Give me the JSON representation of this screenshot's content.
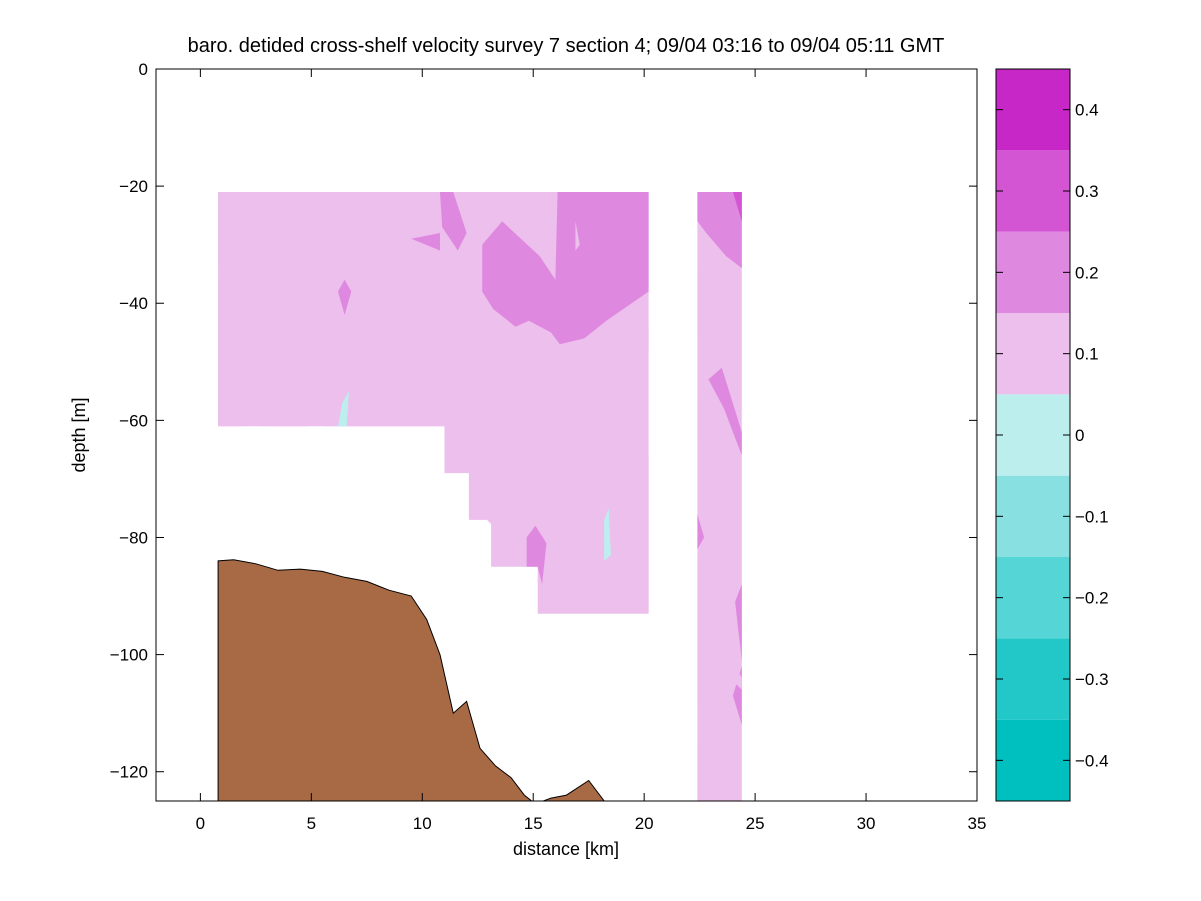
{
  "chart_data": {
    "type": "heatmap",
    "title": "baro. detided cross-shelf velocity survey 7 section 4; 09/04 03:16 to 09/04 05:11 GMT",
    "xlabel": "distance [km]",
    "ylabel": "depth [m]",
    "xlim": [
      -2,
      35
    ],
    "ylim": [
      -125,
      0
    ],
    "xticks": [
      0,
      5,
      10,
      15,
      20,
      25,
      30,
      35
    ],
    "yticks": [
      0,
      -20,
      -40,
      -60,
      -80,
      -100,
      -120
    ],
    "colorbar": {
      "levels": [
        -0.45,
        -0.35,
        -0.25,
        -0.15,
        -0.05,
        0.05,
        0.15,
        0.25,
        0.35,
        0.45
      ],
      "colors": [
        "#00bfbf",
        "#22c8c8",
        "#55d5d5",
        "#88e0e0",
        "#bdeeee",
        "#ecbfec",
        "#df88df",
        "#d455d4",
        "#c827c8",
        "#bf00bf"
      ],
      "ticks": [
        0.4,
        0.3,
        0.2,
        0.1,
        0,
        -0.1,
        -0.2,
        -0.3,
        -0.4
      ],
      "tick_labels": [
        "0.4",
        "0.3",
        "0.2",
        "0.1",
        "0",
        "−0.1",
        "−0.2",
        "−0.3",
        "−0.4"
      ]
    },
    "bathymetry": {
      "color": "#a86a45",
      "points": [
        [
          0.8,
          -84
        ],
        [
          1.5,
          -83.8
        ],
        [
          2.5,
          -84.5
        ],
        [
          3.5,
          -85.6
        ],
        [
          4.5,
          -85.4
        ],
        [
          5.5,
          -85.8
        ],
        [
          6.5,
          -86.8
        ],
        [
          7.5,
          -87.5
        ],
        [
          8.5,
          -89
        ],
        [
          9.5,
          -90
        ],
        [
          10.2,
          -94
        ],
        [
          10.8,
          -100
        ],
        [
          11.4,
          -110
        ],
        [
          12,
          -108
        ],
        [
          12.6,
          -116
        ],
        [
          13.3,
          -119
        ],
        [
          14,
          -121
        ],
        [
          14.6,
          -124
        ],
        [
          15.1,
          -125.5
        ],
        [
          15.8,
          -124.5
        ],
        [
          16.5,
          -124
        ],
        [
          17.5,
          -121.5
        ],
        [
          18.2,
          -125
        ]
      ]
    },
    "sections": [
      {
        "name": "section-west",
        "background_level": 0.1,
        "outline": [
          [
            0.8,
            -21
          ],
          [
            20.2,
            -21
          ],
          [
            20.2,
            -93
          ],
          [
            15.2,
            -93
          ],
          [
            15.2,
            -85
          ],
          [
            13.1,
            -85
          ],
          [
            13.1,
            -77
          ],
          [
            12.1,
            -77
          ],
          [
            12.1,
            -69
          ],
          [
            11,
            -69
          ],
          [
            11,
            -61
          ],
          [
            0.8,
            -61
          ]
        ],
        "patches": [
          {
            "level": 0.05,
            "points": [
              [
                0.8,
                -21
              ],
              [
                1.6,
                -21
              ],
              [
                1.8,
                -26
              ],
              [
                1.5,
                -32
              ],
              [
                0.8,
                -34
              ]
            ]
          },
          {
            "level": 0.05,
            "points": [
              [
                0.8,
                -36
              ],
              [
                1.5,
                -38
              ],
              [
                2.2,
                -46
              ],
              [
                2.4,
                -53
              ],
              [
                2.1,
                -61
              ],
              [
                0.8,
                -61
              ]
            ]
          },
          {
            "level": 0.05,
            "points": [
              [
                2.6,
                -61
              ],
              [
                3.3,
                -56
              ],
              [
                4.6,
                -60
              ],
              [
                4.8,
                -61
              ]
            ]
          },
          {
            "level": 0.05,
            "points": [
              [
                3.9,
                -21
              ],
              [
                4.2,
                -21
              ],
              [
                4.2,
                -28
              ],
              [
                3.9,
                -29
              ]
            ]
          },
          {
            "level": 0.05,
            "points": [
              [
                4.3,
                -40
              ],
              [
                5.6,
                -44
              ],
              [
                7,
                -52
              ],
              [
                8,
                -50
              ],
              [
                9.5,
                -54
              ],
              [
                10.8,
                -55
              ],
              [
                11,
                -61
              ],
              [
                5.6,
                -61
              ],
              [
                5,
                -52
              ],
              [
                4.4,
                -45
              ]
            ]
          },
          {
            "level": 0.05,
            "points": [
              [
                6.7,
                -28
              ],
              [
                7.7,
                -25
              ],
              [
                8.3,
                -34
              ],
              [
                8,
                -39
              ],
              [
                6.8,
                -32
              ]
            ]
          },
          {
            "level": 0.05,
            "points": [
              [
                8,
                -36
              ],
              [
                9.5,
                -34
              ],
              [
                10.8,
                -38
              ],
              [
                10,
                -42
              ],
              [
                9,
                -39
              ]
            ]
          },
          {
            "level": 0.05,
            "points": [
              [
                10.8,
                -38
              ],
              [
                11.2,
                -46
              ],
              [
                10.8,
                -55
              ],
              [
                10.2,
                -49
              ]
            ]
          },
          {
            "level": 0.05,
            "points": [
              [
                12.5,
                -56
              ],
              [
                14,
                -54
              ],
              [
                14.8,
                -55
              ],
              [
                14.4,
                -64
              ],
              [
                13.7,
                -70
              ],
              [
                13.7,
                -80
              ],
              [
                12.4,
                -75
              ],
              [
                12.1,
                -66
              ]
            ]
          },
          {
            "level": 0.05,
            "points": [
              [
                15.2,
                -93
              ],
              [
                17.2,
                -84
              ],
              [
                18.5,
                -78
              ],
              [
                19.2,
                -75
              ],
              [
                19.4,
                -67
              ],
              [
                20.2,
                -66
              ],
              [
                20.2,
                -93
              ]
            ]
          },
          {
            "level": 0.05,
            "points": [
              [
                19.6,
                -48
              ],
              [
                20.2,
                -44
              ],
              [
                20.2,
                -48
              ]
            ]
          },
          {
            "level": 0.15,
            "points": [
              [
                10.8,
                -21
              ],
              [
                11.4,
                -21
              ],
              [
                12,
                -28
              ],
              [
                11.6,
                -31
              ],
              [
                10.9,
                -27
              ]
            ]
          },
          {
            "level": 0.15,
            "points": [
              [
                9.5,
                -29
              ],
              [
                10.8,
                -28
              ],
              [
                10.8,
                -31
              ]
            ]
          },
          {
            "level": 0.15,
            "points": [
              [
                6.5,
                -36
              ],
              [
                6.8,
                -38
              ],
              [
                6.5,
                -42
              ],
              [
                6.2,
                -38
              ]
            ]
          },
          {
            "level": 0.15,
            "points": [
              [
                12.7,
                -30
              ],
              [
                13.6,
                -26
              ],
              [
                15.3,
                -32
              ],
              [
                16,
                -36
              ],
              [
                16.1,
                -21
              ],
              [
                20.2,
                -21
              ],
              [
                20.2,
                -38
              ],
              [
                18.3,
                -43
              ],
              [
                17.3,
                -46
              ],
              [
                16.2,
                -47
              ],
              [
                15.8,
                -45
              ],
              [
                14.8,
                -43
              ],
              [
                14.2,
                -44
              ],
              [
                13.2,
                -41
              ],
              [
                12.7,
                -38
              ]
            ]
          },
          {
            "level": 0.15,
            "points": [
              [
                14.7,
                -80
              ],
              [
                15.1,
                -78
              ],
              [
                15.6,
                -81
              ],
              [
                15.4,
                -88
              ],
              [
                15.2,
                -85
              ],
              [
                14.7,
                -85
              ]
            ]
          },
          {
            "level": 0.05,
            "points": [
              [
                16.9,
                -26
              ],
              [
                17.1,
                -30
              ],
              [
                16.9,
                -31
              ]
            ]
          },
          {
            "level": -0.05,
            "points": [
              [
                6.4,
                -57
              ],
              [
                6.7,
                -55
              ],
              [
                6.6,
                -61
              ],
              [
                6.2,
                -61
              ]
            ]
          },
          {
            "level": -0.05,
            "points": [
              [
                18.2,
                -77
              ],
              [
                18.4,
                -75
              ],
              [
                18.5,
                -83
              ],
              [
                18.2,
                -84
              ]
            ]
          }
        ]
      },
      {
        "name": "section-east",
        "background_level": 0.05,
        "outline": [
          [
            22.4,
            -21
          ],
          [
            24.4,
            -21
          ],
          [
            24.4,
            -125
          ],
          [
            22.4,
            -125
          ]
        ],
        "patches": [
          {
            "level": 0.15,
            "points": [
              [
                22.4,
                -21
              ],
              [
                24.4,
                -21
              ],
              [
                24.4,
                -34
              ],
              [
                23.7,
                -32
              ],
              [
                22.8,
                -28
              ],
              [
                22.4,
                -26
              ]
            ]
          },
          {
            "level": 0.25,
            "points": [
              [
                24,
                -21
              ],
              [
                24.4,
                -21
              ],
              [
                24.4,
                -26
              ]
            ]
          },
          {
            "level": 0.15,
            "points": [
              [
                22.9,
                -53
              ],
              [
                23.5,
                -51
              ],
              [
                24.4,
                -62
              ],
              [
                24.4,
                -66
              ],
              [
                23.6,
                -58
              ]
            ]
          },
          {
            "level": 0.15,
            "points": [
              [
                24.1,
                -91
              ],
              [
                24.4,
                -88
              ],
              [
                24.4,
                -101
              ]
            ]
          },
          {
            "level": 0.15,
            "points": [
              [
                24,
                -107
              ],
              [
                24.4,
                -102
              ],
              [
                24.4,
                -112
              ]
            ]
          },
          {
            "level": 0.15,
            "points": [
              [
                22.4,
                -76
              ],
              [
                22.7,
                -80
              ],
              [
                22.4,
                -82
              ]
            ]
          },
          {
            "level": 0.05,
            "points": [
              [
                22.4,
                -34
              ],
              [
                23.3,
                -38
              ],
              [
                23.3,
                -44
              ],
              [
                22.4,
                -46
              ]
            ]
          },
          {
            "level": 0.05,
            "points": [
              [
                22.4,
                -56
              ],
              [
                22.7,
                -60
              ],
              [
                22.4,
                -63
              ]
            ]
          },
          {
            "level": 0.05,
            "points": [
              [
                22.9,
                -73
              ],
              [
                23.3,
                -76
              ],
              [
                23.1,
                -82
              ],
              [
                22.8,
                -78
              ]
            ]
          },
          {
            "level": 0.05,
            "points": [
              [
                22.4,
                -84
              ],
              [
                23.3,
                -87
              ],
              [
                23.6,
                -91
              ],
              [
                23.3,
                -104
              ],
              [
                22.5,
                -110
              ],
              [
                22.4,
                -108
              ]
            ]
          },
          {
            "level": 0.05,
            "points": [
              [
                23.6,
                -103
              ],
              [
                24,
                -101
              ],
              [
                24.4,
                -104
              ],
              [
                24.4,
                -106
              ]
            ]
          },
          {
            "level": 0.05,
            "points": [
              [
                22.4,
                -111
              ],
              [
                23.4,
                -114
              ],
              [
                24.1,
                -121
              ],
              [
                23.7,
                -123
              ],
              [
                22.8,
                -118
              ]
            ]
          },
          {
            "level": 0.05,
            "points": [
              [
                22.4,
                -115
              ],
              [
                23.4,
                -124
              ],
              [
                22.4,
                -125
              ]
            ]
          }
        ]
      }
    ]
  }
}
